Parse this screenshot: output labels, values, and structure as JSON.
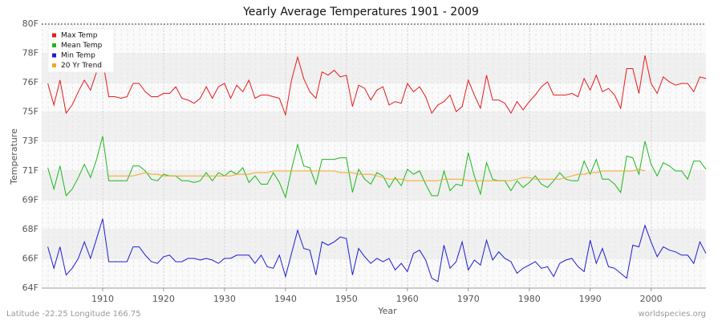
{
  "chart_data": {
    "type": "line",
    "title": "Yearly Average Temperatures 1901 - 2009",
    "xlabel": "Year",
    "ylabel": "Temperature",
    "footer_left": "Latitude -22.25 Longitude 166.75",
    "footer_right": "worldspecies.org",
    "legend": "upper left",
    "grid": true,
    "x": [
      1901,
      1902,
      1903,
      1904,
      1905,
      1906,
      1907,
      1908,
      1909,
      1910,
      1911,
      1912,
      1913,
      1914,
      1915,
      1916,
      1917,
      1918,
      1919,
      1920,
      1921,
      1922,
      1923,
      1924,
      1925,
      1926,
      1927,
      1928,
      1929,
      1930,
      1931,
      1932,
      1933,
      1934,
      1935,
      1936,
      1937,
      1938,
      1939,
      1940,
      1941,
      1942,
      1943,
      1944,
      1945,
      1946,
      1947,
      1948,
      1949,
      1950,
      1951,
      1952,
      1953,
      1954,
      1955,
      1956,
      1957,
      1958,
      1959,
      1960,
      1961,
      1962,
      1963,
      1964,
      1965,
      1966,
      1967,
      1968,
      1969,
      1970,
      1971,
      1972,
      1973,
      1974,
      1975,
      1976,
      1977,
      1978,
      1979,
      1980,
      1981,
      1982,
      1983,
      1984,
      1985,
      1986,
      1987,
      1988,
      1989,
      1990,
      1991,
      1992,
      1993,
      1994,
      1995,
      1996,
      1997,
      1998,
      1999,
      2000,
      2001,
      2002,
      2003,
      2004,
      2005,
      2006,
      2007,
      2008,
      2009
    ],
    "xlim": [
      1900,
      2009
    ],
    "xticks": [
      1910,
      1920,
      1930,
      1940,
      1950,
      1960,
      1970,
      1980,
      1990,
      2000
    ],
    "ylim": [
      64,
      80
    ],
    "yticks": [
      {
        "value": 64,
        "label": "64F"
      },
      {
        "value": 65.78,
        "label": "66F"
      },
      {
        "value": 67.56,
        "label": "68F"
      },
      {
        "value": 69.33,
        "label": "69F"
      },
      {
        "value": 71.11,
        "label": "71F"
      },
      {
        "value": 72.89,
        "label": "73F"
      },
      {
        "value": 74.67,
        "label": "75F"
      },
      {
        "value": 76.44,
        "label": "76F"
      },
      {
        "value": 78.22,
        "label": "78F"
      },
      {
        "value": 80,
        "label": "80F"
      }
    ],
    "series": [
      {
        "name": "Max Temp",
        "color": "#e8191c",
        "values": [
          76.4,
          75.1,
          76.6,
          74.6,
          75.1,
          75.9,
          76.6,
          76.0,
          77.1,
          77.8,
          75.6,
          75.6,
          75.5,
          75.6,
          76.4,
          76.4,
          75.9,
          75.6,
          75.6,
          75.8,
          75.8,
          76.2,
          75.5,
          75.4,
          75.2,
          75.5,
          76.2,
          75.5,
          76.2,
          76.4,
          75.5,
          76.3,
          75.9,
          76.6,
          75.5,
          75.7,
          75.7,
          75.6,
          75.5,
          74.5,
          76.6,
          78.0,
          76.7,
          75.9,
          75.5,
          77.1,
          76.9,
          77.2,
          76.8,
          76.9,
          75.0,
          76.3,
          76.1,
          75.4,
          76.0,
          76.2,
          75.1,
          75.3,
          75.2,
          76.4,
          75.9,
          76.2,
          75.6,
          74.6,
          75.1,
          75.3,
          75.7,
          74.7,
          75.0,
          76.6,
          75.7,
          74.9,
          76.9,
          75.4,
          75.4,
          75.2,
          74.6,
          75.3,
          74.8,
          75.3,
          75.7,
          76.2,
          76.5,
          75.7,
          75.7,
          75.7,
          75.8,
          75.6,
          76.7,
          76.0,
          76.9,
          75.9,
          76.1,
          75.7,
          74.9,
          77.3,
          77.3,
          75.8,
          78.1,
          76.4,
          75.8,
          76.8,
          76.5,
          76.3,
          76.4,
          76.4,
          75.9,
          76.8,
          76.7
        ]
      },
      {
        "name": "Mean Temp",
        "color": "#1cb81c",
        "values": [
          71.3,
          70.0,
          71.4,
          69.6,
          70.0,
          70.7,
          71.5,
          70.7,
          71.8,
          73.2,
          70.5,
          70.5,
          70.5,
          70.5,
          71.4,
          71.4,
          71.1,
          70.6,
          70.5,
          70.9,
          70.8,
          70.8,
          70.5,
          70.5,
          70.4,
          70.5,
          71.0,
          70.5,
          71.0,
          70.8,
          71.1,
          70.9,
          71.3,
          70.4,
          70.8,
          70.3,
          70.3,
          71.0,
          70.4,
          69.5,
          71.2,
          72.7,
          71.4,
          71.3,
          70.3,
          71.8,
          71.8,
          71.8,
          71.9,
          71.9,
          69.8,
          71.2,
          70.6,
          70.3,
          71.0,
          70.8,
          70.1,
          70.7,
          70.2,
          71.2,
          70.9,
          71.1,
          70.3,
          69.6,
          69.6,
          71.1,
          69.9,
          70.3,
          70.2,
          72.2,
          70.8,
          69.7,
          71.6,
          70.6,
          70.5,
          70.5,
          69.9,
          70.5,
          70.1,
          70.4,
          70.8,
          70.3,
          70.1,
          70.5,
          71.0,
          70.6,
          70.5,
          70.5,
          71.7,
          70.9,
          71.8,
          70.6,
          70.6,
          70.3,
          69.8,
          72.0,
          71.9,
          70.9,
          72.9,
          71.5,
          70.8,
          71.6,
          71.4,
          71.1,
          71.1,
          70.6,
          71.7,
          71.7,
          71.2
        ]
      },
      {
        "name": "Min Temp",
        "color": "#1c1cd6",
        "values": [
          66.5,
          65.2,
          66.5,
          64.8,
          65.2,
          65.8,
          66.8,
          65.8,
          67.0,
          68.2,
          65.6,
          65.6,
          65.6,
          65.6,
          66.5,
          66.5,
          66.0,
          65.6,
          65.5,
          65.9,
          66.0,
          65.6,
          65.6,
          65.8,
          65.8,
          65.7,
          65.8,
          65.7,
          65.5,
          65.8,
          65.8,
          66.0,
          66.0,
          66.0,
          65.5,
          66.0,
          65.3,
          65.2,
          66.0,
          64.7,
          66.1,
          67.5,
          66.4,
          66.3,
          64.8,
          66.8,
          66.6,
          66.8,
          67.1,
          67.0,
          64.8,
          66.4,
          65.9,
          65.5,
          65.8,
          65.6,
          65.8,
          65.1,
          65.5,
          65.0,
          66.1,
          66.3,
          65.7,
          64.6,
          64.4,
          66.6,
          65.2,
          65.6,
          66.8,
          65.1,
          65.7,
          65.4,
          66.9,
          65.7,
          66.2,
          65.8,
          65.6,
          64.9,
          65.2,
          65.4,
          65.6,
          65.2,
          65.3,
          64.7,
          65.5,
          65.7,
          65.8,
          65.3,
          65.0,
          66.9,
          65.5,
          66.4,
          65.3,
          65.2,
          64.9,
          64.6,
          66.6,
          66.5,
          67.8,
          66.8,
          65.9,
          66.5,
          66.3,
          66.2,
          66.0,
          66.0,
          65.5,
          66.8,
          66.1
        ]
      },
      {
        "name": "20 Yr Trend",
        "color": "#f5a623",
        "values": [
          null,
          null,
          null,
          null,
          null,
          null,
          null,
          null,
          null,
          null,
          70.8,
          70.8,
          70.8,
          70.8,
          70.8,
          70.9,
          71.0,
          70.9,
          70.9,
          70.8,
          70.8,
          70.8,
          70.8,
          70.8,
          70.8,
          70.8,
          70.8,
          70.8,
          70.8,
          70.8,
          70.8,
          70.9,
          70.9,
          70.9,
          71.0,
          71.0,
          71.0,
          71.1,
          71.1,
          71.1,
          71.1,
          71.1,
          71.1,
          71.1,
          71.1,
          71.1,
          71.1,
          71.1,
          71.0,
          71.0,
          71.0,
          70.9,
          70.9,
          70.9,
          70.8,
          70.7,
          70.6,
          70.6,
          70.6,
          70.5,
          70.5,
          70.5,
          70.5,
          70.5,
          70.5,
          70.6,
          70.6,
          70.6,
          70.6,
          70.5,
          70.5,
          70.5,
          70.5,
          70.5,
          70.5,
          70.5,
          70.5,
          70.6,
          70.7,
          70.7,
          70.6,
          70.6,
          70.6,
          70.6,
          70.6,
          70.7,
          70.8,
          70.9,
          70.9,
          71.0,
          71.0,
          71.1,
          71.1,
          71.1,
          71.1,
          71.1,
          71.1,
          71.2,
          71.1,
          null,
          null,
          null,
          null,
          null,
          null,
          null,
          null,
          null,
          null
        ]
      }
    ]
  }
}
